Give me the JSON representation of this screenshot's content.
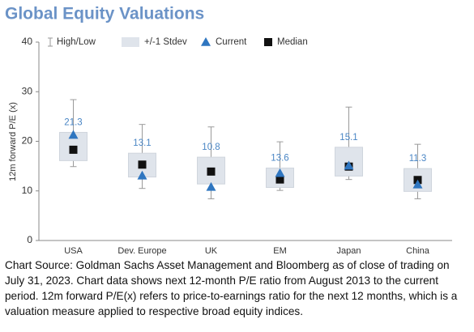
{
  "chart_data": {
    "type": "range",
    "title": "Global Equity Valuations",
    "y_label": "12m forward P/E (x)",
    "categories": [
      "USA",
      "Dev. Europe",
      "UK",
      "EM",
      "Japan",
      "China"
    ],
    "ylim": [
      0,
      40
    ],
    "yticks": [
      0,
      10,
      20,
      30,
      40
    ],
    "series": [
      {
        "name": "High/Low",
        "color": "#9a9a9a",
        "high": [
          28.4,
          23.4,
          22.9,
          19.9,
          26.9,
          19.4
        ],
        "low": [
          14.9,
          10.5,
          8.4,
          10.1,
          12.3,
          8.4
        ]
      },
      {
        "name": "+/-1 Stdev",
        "color": "#dfe4eb",
        "upper": [
          21.8,
          17.6,
          16.8,
          14.6,
          18.8,
          14.5
        ],
        "lower": [
          16.1,
          12.8,
          11.4,
          10.7,
          13.0,
          9.9
        ]
      },
      {
        "name": "Current",
        "color": "#2f76c0",
        "values": [
          21.3,
          13.1,
          10.8,
          13.6,
          15.1,
          11.3
        ]
      },
      {
        "name": "Median",
        "color": "#111111",
        "values": [
          18.3,
          15.3,
          13.9,
          12.3,
          14.9,
          12.2
        ]
      }
    ],
    "value_label_color": "#4a86c5",
    "source": "Chart Source: Goldman Sachs Asset Management and Bloomberg as of close of trading on July 31, 2023. Chart data shows next 12-month P/E ratio from August 2013 to the current period. 12m forward P/E(x) refers to price-to-earnings ratio for the next 12 months, which is a valuation measure applied to respective broad equity indices."
  }
}
